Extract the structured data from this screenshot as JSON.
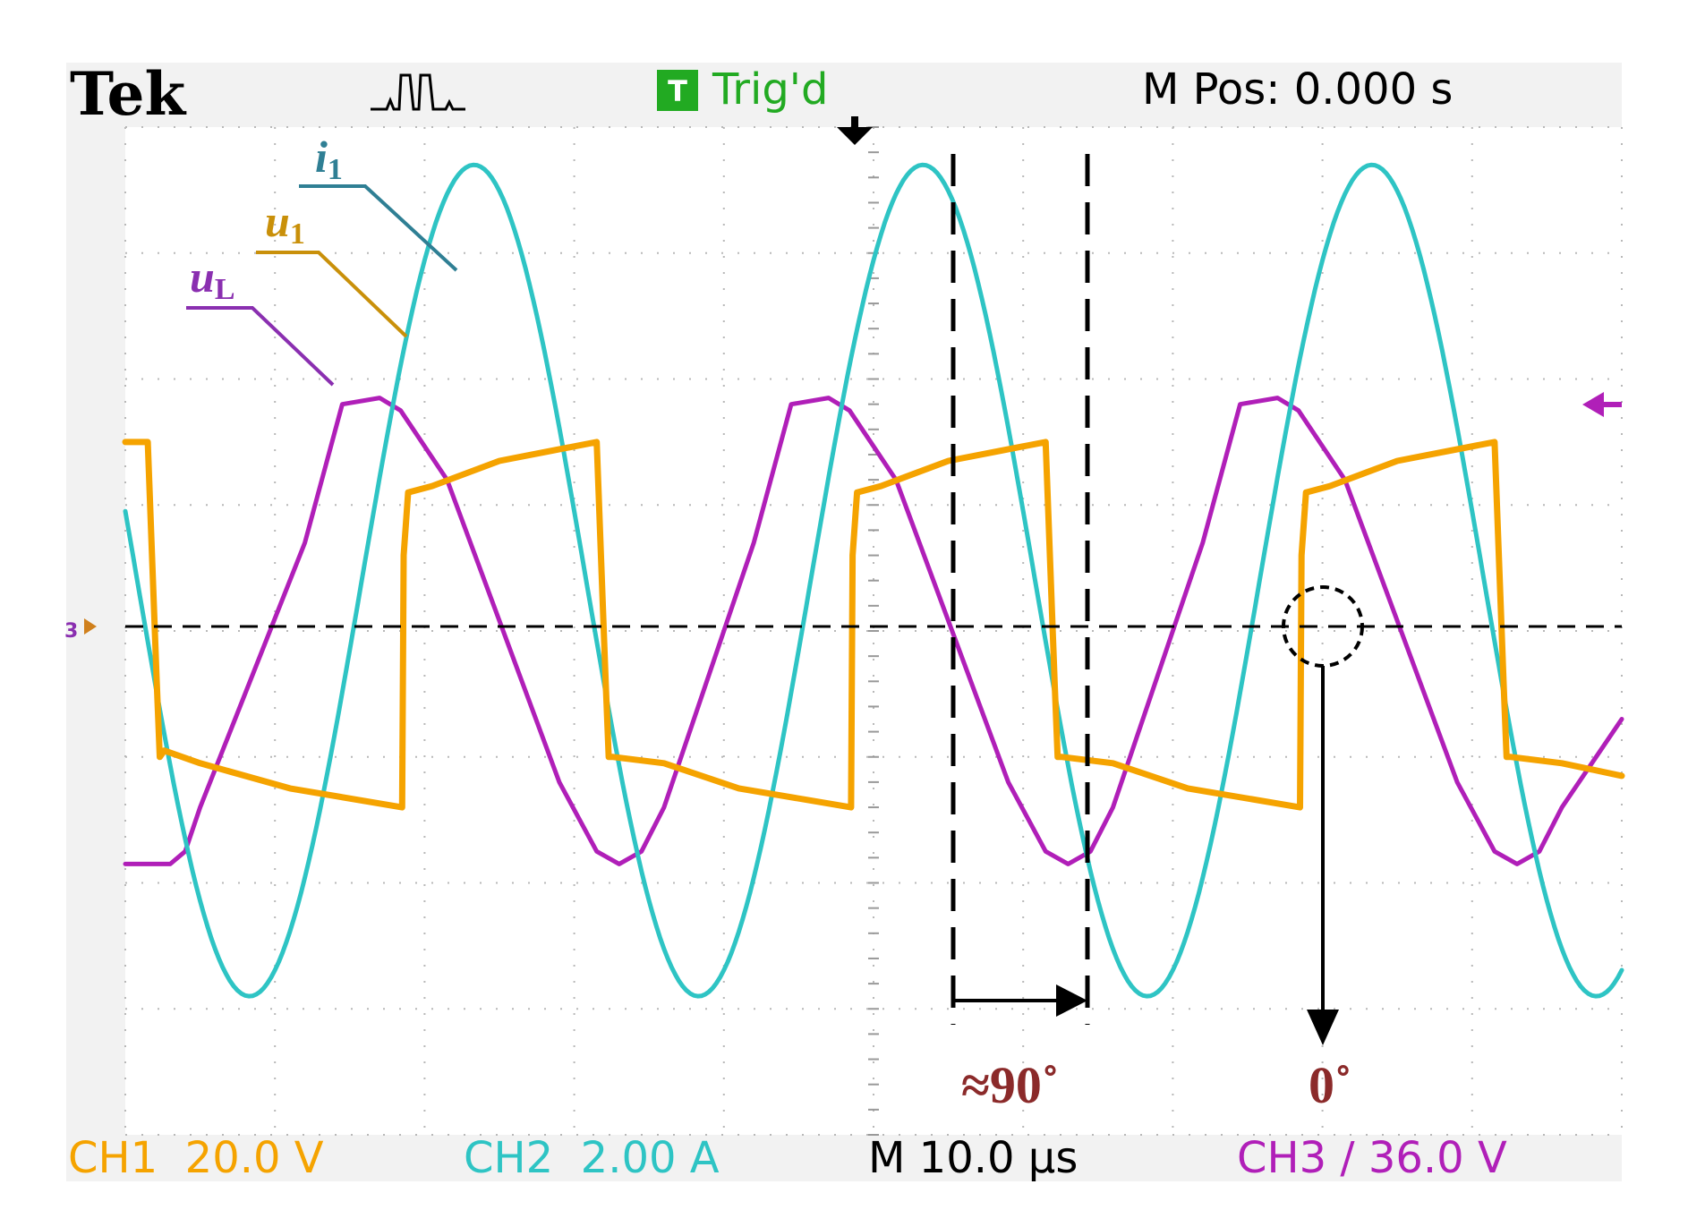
{
  "header": {
    "brand": "Tek",
    "trigger_badge": "T",
    "trigger_status": "Trig'd",
    "m_pos": "M Pos: 0.000 s"
  },
  "footer": {
    "ch1": "CH1  20.0 V",
    "ch2": "CH2  2.00 A",
    "timebase": "M 10.0 µs",
    "ch3": "CH3 ∕ 36.0 V"
  },
  "labels": {
    "i1_main": "i",
    "i1_sub": "1",
    "u1_main": "u",
    "u1_sub": "1",
    "uL_main": "u",
    "uL_sub": "L",
    "phase_shift": "≈90˚",
    "zero_phase": "0˚",
    "ground_marker": "3"
  },
  "colors": {
    "ch1": "#f5a300",
    "ch2": "#2ec4c4",
    "ch3": "#b01fb8",
    "trigger_green": "#22aa22",
    "annotation": "#8b2a2a",
    "label_i1": "#2f7f94",
    "label_u1": "#c9900a",
    "label_uL": "#8a2fb0",
    "grid": "#b8b8b8",
    "screen_bg": "#ffffff",
    "frame_bg": "#f2f2f2"
  },
  "chart_data": {
    "type": "line",
    "title": "",
    "xlabel": "",
    "ylabel": "",
    "x_unit": "µs",
    "y_unit": "div",
    "xlim": [
      -50,
      50
    ],
    "ylim": [
      -4,
      4
    ],
    "grid": true,
    "time_per_div_us": 10.0,
    "series": [
      {
        "name": "i1",
        "channel": "CH2",
        "scale": "2.00 A/div",
        "shape": "sine",
        "period_us": 30.0,
        "amplitude_div": 3.3,
        "offset_div": 0.4,
        "peaks_x_us": [
          -26.7,
          3.9,
          34.5
        ]
      },
      {
        "name": "u1",
        "channel": "CH1",
        "scale": "20.0 V/div",
        "shape": "square",
        "points": [
          {
            "x": -50,
            "y": 1.5
          },
          {
            "x": -48.5,
            "y": 1.5
          },
          {
            "x": -47.9,
            "y": -0.4
          },
          {
            "x": -47.7,
            "y": -1.0
          },
          {
            "x": -47.4,
            "y": -0.95
          },
          {
            "x": -45,
            "y": -1.05
          },
          {
            "x": -39,
            "y": -1.25
          },
          {
            "x": -31.5,
            "y": -1.4
          },
          {
            "x": -31.4,
            "y": 0.6
          },
          {
            "x": -31.1,
            "y": 1.1
          },
          {
            "x": -29.5,
            "y": 1.15
          },
          {
            "x": -25,
            "y": 1.35
          },
          {
            "x": -18.5,
            "y": 1.5
          },
          {
            "x": -17.9,
            "y": -0.4
          },
          {
            "x": -17.7,
            "y": -1.0
          },
          {
            "x": -17.4,
            "y": -1.0
          },
          {
            "x": -14,
            "y": -1.05
          },
          {
            "x": -9,
            "y": -1.25
          },
          {
            "x": -1.5,
            "y": -1.4
          },
          {
            "x": -1.4,
            "y": 0.6
          },
          {
            "x": -1.1,
            "y": 1.1
          },
          {
            "x": 0.5,
            "y": 1.15
          },
          {
            "x": 5,
            "y": 1.35
          },
          {
            "x": 11.5,
            "y": 1.5
          },
          {
            "x": 12.1,
            "y": -0.4
          },
          {
            "x": 12.3,
            "y": -1.0
          },
          {
            "x": 12.6,
            "y": -1.0
          },
          {
            "x": 16,
            "y": -1.05
          },
          {
            "x": 21,
            "y": -1.25
          },
          {
            "x": 28.5,
            "y": -1.4
          },
          {
            "x": 28.6,
            "y": 0.6
          },
          {
            "x": 28.9,
            "y": 1.1
          },
          {
            "x": 30.5,
            "y": 1.15
          },
          {
            "x": 35,
            "y": 1.35
          },
          {
            "x": 41.5,
            "y": 1.5
          },
          {
            "x": 42.1,
            "y": -0.4
          },
          {
            "x": 42.3,
            "y": -1.0
          },
          {
            "x": 42.6,
            "y": -1.0
          },
          {
            "x": 46,
            "y": -1.05
          },
          {
            "x": 50,
            "y": -1.15
          }
        ]
      },
      {
        "name": "uL",
        "channel": "CH3",
        "scale": "36.0 V/div",
        "shape": "trapezoidal",
        "points": [
          {
            "x": -50,
            "y": -1.85
          },
          {
            "x": -47,
            "y": -1.85
          },
          {
            "x": -46,
            "y": -1.75
          },
          {
            "x": -45,
            "y": -1.4
          },
          {
            "x": -38,
            "y": 0.7
          },
          {
            "x": -35.5,
            "y": 1.8
          },
          {
            "x": -33,
            "y": 1.85
          },
          {
            "x": -31.6,
            "y": 1.75
          },
          {
            "x": -28.5,
            "y": 1.2
          },
          {
            "x": -21,
            "y": -1.2
          },
          {
            "x": -18.5,
            "y": -1.75
          },
          {
            "x": -17,
            "y": -1.85
          },
          {
            "x": -15.5,
            "y": -1.75
          },
          {
            "x": -14,
            "y": -1.4
          },
          {
            "x": -8,
            "y": 0.7
          },
          {
            "x": -5.5,
            "y": 1.8
          },
          {
            "x": -3,
            "y": 1.85
          },
          {
            "x": -1.6,
            "y": 1.75
          },
          {
            "x": 1.5,
            "y": 1.2
          },
          {
            "x": 9,
            "y": -1.2
          },
          {
            "x": 11.5,
            "y": -1.75
          },
          {
            "x": 13,
            "y": -1.85
          },
          {
            "x": 14.5,
            "y": -1.75
          },
          {
            "x": 16,
            "y": -1.4
          },
          {
            "x": 22,
            "y": 0.7
          },
          {
            "x": 24.5,
            "y": 1.8
          },
          {
            "x": 27,
            "y": 1.85
          },
          {
            "x": 28.4,
            "y": 1.75
          },
          {
            "x": 31.5,
            "y": 1.2
          },
          {
            "x": 39,
            "y": -1.2
          },
          {
            "x": 41.5,
            "y": -1.75
          },
          {
            "x": 43,
            "y": -1.85
          },
          {
            "x": 44.5,
            "y": -1.75
          },
          {
            "x": 46,
            "y": -1.4
          },
          {
            "x": 50,
            "y": -0.7
          }
        ]
      }
    ],
    "annotations": [
      {
        "text": "≈90˚",
        "from_x_us": 5.8,
        "to_x_us": 12.3,
        "type": "bracket-arrow"
      },
      {
        "text": "0˚",
        "x_us": 30.0,
        "y_div": 0,
        "type": "circle-arrow"
      }
    ]
  }
}
